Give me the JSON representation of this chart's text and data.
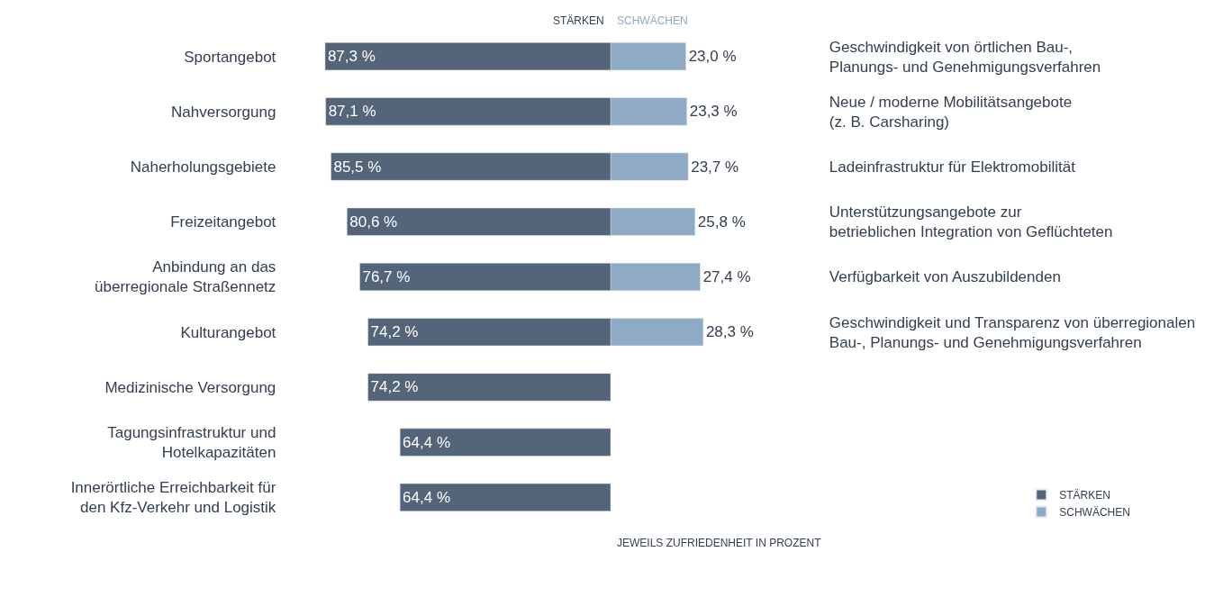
{
  "chart_data": [
    {
      "type": "bar",
      "orientation": "horizontal",
      "title": "STÄRKEN",
      "categories": [
        "Sportangebot",
        "Nahversorgung",
        "Naherholungsgebiete",
        "Freizeitangebot",
        "Anbindung an das\nüberregionale Straßennetz",
        "Kulturangebot",
        "Medizinische Versorgung",
        "Tagungsinfrastruktur und\nHotelkapazitäten",
        "Innerörtliche Erreichbarkeit für\nden Kfz-Verkehr und Logistik"
      ],
      "series": [
        {
          "name": "STÄRKEN",
          "color": "#546479",
          "values": [
            87.3,
            87.1,
            85.5,
            80.6,
            76.7,
            74.2,
            74.2,
            64.4,
            64.4
          ],
          "value_labels": [
            "87,3 %",
            "87,1 %",
            "85,5 %",
            "80,6 %",
            "76,7 %",
            "74,2 %",
            "74,2 %",
            "64,4 %",
            "64,4 %"
          ]
        }
      ],
      "annotations": [
        "JEWEILS ZUFRIEDENHEIT IN PROZENT"
      ],
      "tick_labels": "y",
      "legend": "bottom right"
    },
    {
      "type": "bar",
      "orientation": "horizontal",
      "title": "SCHWÄCHEN",
      "categories": [
        "Geschwindigkeit von örtlichen Bau-,\nPlanungs- und Genehmigungsverfahren",
        "Neue / moderne Mobilitätsangebote\n(z. B. Carsharing)",
        "Ladeinfrastruktur für Elektromobilität",
        "Unterstützungsangebote zur\nbetrieblichen Integration von Geflüchteten",
        "Verfügbarkeit von Auszubildenden",
        "Geschwindigkeit und Transparenz von überregionalen\nBau-, Planungs- und Genehmigungsverfahren"
      ],
      "series": [
        {
          "name": "SCHWÄCHEN",
          "color": "#8faac4",
          "values": [
            23.0,
            23.3,
            23.7,
            25.8,
            27.4,
            28.3
          ],
          "value_labels": [
            "23,0 %",
            "23,3 %",
            "23,7 %",
            "25,8 %",
            "27,4 %",
            "28,3 %"
          ]
        }
      ],
      "tick_labels": "y",
      "legend": "bottom right"
    }
  ]
}
